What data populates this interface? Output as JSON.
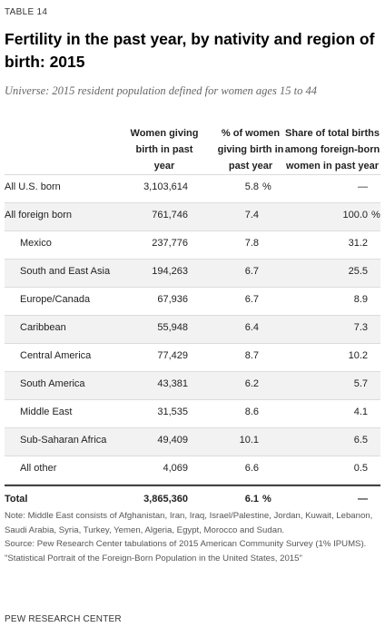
{
  "table_label": "TABLE 14",
  "title": "Fertility in the past year, by nativity and region of birth: 2015",
  "subtitle": "Universe: 2015 resident population defined for women ages 15 to 44",
  "columns": {
    "c1": [
      "Women giving",
      "birth in past",
      "year"
    ],
    "c2": [
      "% of women",
      "giving birth in",
      "past year"
    ],
    "c3": [
      "Share of total births",
      "among foreign-born",
      "women in past year"
    ]
  },
  "rows": [
    {
      "label": "All U.S. born",
      "v1": "3,103,614",
      "v2": "5.8",
      "u2": "%",
      "v3": "—",
      "u3": ""
    },
    {
      "label": "All foreign born",
      "v1": "761,746",
      "v2": "7.4",
      "u2": "",
      "v3": "100.0",
      "u3": "%"
    },
    {
      "label": "Mexico",
      "v1": "237,776",
      "v2": "7.8",
      "u2": "",
      "v3": "31.2",
      "u3": ""
    },
    {
      "label": "South and East Asia",
      "v1": "194,263",
      "v2": "6.7",
      "u2": "",
      "v3": "25.5",
      "u3": ""
    },
    {
      "label": "Europe/Canada",
      "v1": "67,936",
      "v2": "6.7",
      "u2": "",
      "v3": "8.9",
      "u3": ""
    },
    {
      "label": "Caribbean",
      "v1": "55,948",
      "v2": "6.4",
      "u2": "",
      "v3": "7.3",
      "u3": ""
    },
    {
      "label": "Central America",
      "v1": "77,429",
      "v2": "8.7",
      "u2": "",
      "v3": "10.2",
      "u3": ""
    },
    {
      "label": "South America",
      "v1": "43,381",
      "v2": "6.2",
      "u2": "",
      "v3": "5.7",
      "u3": ""
    },
    {
      "label": "Middle East",
      "v1": "31,535",
      "v2": "8.6",
      "u2": "",
      "v3": "4.1",
      "u3": ""
    },
    {
      "label": "Sub-Saharan Africa",
      "v1": "49,409",
      "v2": "10.1",
      "u2": "",
      "v3": "6.5",
      "u3": ""
    },
    {
      "label": "All other",
      "v1": "4,069",
      "v2": "6.6",
      "u2": "",
      "v3": "0.5",
      "u3": ""
    }
  ],
  "total": {
    "label": "Total",
    "v1": "3,865,360",
    "v2": "6.1",
    "u2": "%",
    "v3": "—",
    "u3": ""
  },
  "notes": [
    "Note: Middle East consists of Afghanistan, Iran, Iraq, Israel/Palestine, Jordan, Kuwait, Lebanon, Saudi Arabia, Syria, Turkey, Yemen, Algeria, Egypt, Morocco and Sudan.",
    "Source: Pew Research Center tabulations of 2015 American Community Survey (1% IPUMS).",
    "\"Statistical Portrait of the Foreign-Born Population in the United States, 2015\""
  ],
  "credit": "PEW RESEARCH CENTER"
}
